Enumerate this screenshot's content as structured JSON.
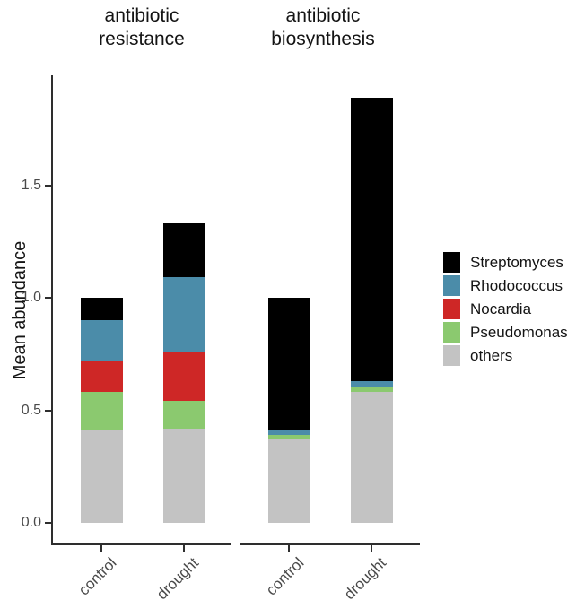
{
  "chart_data": {
    "type": "bar",
    "stacked": true,
    "ylabel": "Mean abundance",
    "yticks": [
      {
        "value": 0.0,
        "label": "0.0"
      },
      {
        "value": 0.5,
        "label": "0.5"
      },
      {
        "value": 1.0,
        "label": "1.0"
      },
      {
        "value": 1.5,
        "label": "1.5"
      }
    ],
    "ylim": [
      0,
      1.99
    ],
    "grid": false,
    "legend_position": "right",
    "legend": [
      {
        "name": "Streptomyces",
        "color": "#000000"
      },
      {
        "name": "Rhodococcus",
        "color": "#4B8CA9"
      },
      {
        "name": "Nocardia",
        "color": "#CE2726"
      },
      {
        "name": "Pseudomonas",
        "color": "#8BC96F"
      },
      {
        "name": "others",
        "color": "#C3C3C3"
      }
    ],
    "stack_order_bottom_to_top": [
      "others",
      "Pseudomonas",
      "Nocardia",
      "Rhodococcus",
      "Streptomyces"
    ],
    "panels": [
      {
        "title_lines": [
          "antibiotic",
          "resistance"
        ],
        "categories": [
          "control",
          "drought"
        ],
        "series": [
          {
            "name": "others",
            "values": [
              0.41,
              0.42
            ]
          },
          {
            "name": "Pseudomonas",
            "values": [
              0.17,
              0.12
            ]
          },
          {
            "name": "Nocardia",
            "values": [
              0.14,
              0.22
            ]
          },
          {
            "name": "Rhodococcus",
            "values": [
              0.18,
              0.33
            ]
          },
          {
            "name": "Streptomyces",
            "values": [
              0.1,
              0.24
            ]
          }
        ]
      },
      {
        "title_lines": [
          "antibiotic",
          "biosynthesis"
        ],
        "categories": [
          "control",
          "drought"
        ],
        "series": [
          {
            "name": "others",
            "values": [
              0.37,
              0.58
            ]
          },
          {
            "name": "Pseudomonas",
            "values": [
              0.02,
              0.02
            ]
          },
          {
            "name": "Nocardia",
            "values": [
              0.0,
              0.0
            ]
          },
          {
            "name": "Rhodococcus",
            "values": [
              0.025,
              0.03
            ]
          },
          {
            "name": "Streptomyces",
            "values": [
              0.585,
              1.26
            ]
          }
        ]
      }
    ],
    "style": {
      "axis_color": "#2e2e2e",
      "tick_label_color": "#4a4a4a",
      "title_color": "#141414",
      "background": "#ffffff"
    }
  }
}
